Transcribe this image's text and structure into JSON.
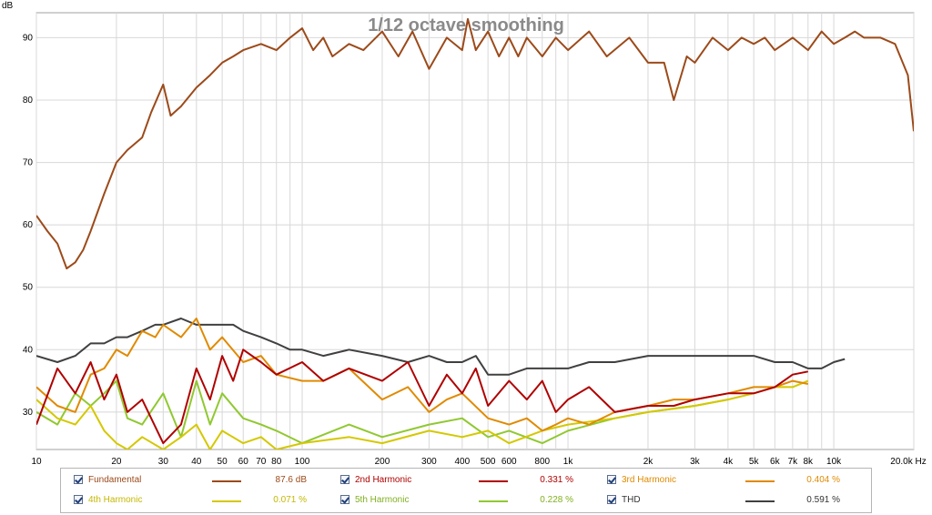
{
  "chart_data": {
    "type": "line",
    "title": "1/12 octave smoothing",
    "ylabel": "dB",
    "x_scale": "log",
    "xlim": [
      10,
      20000
    ],
    "ylim": [
      24,
      94
    ],
    "grid": true,
    "x_ticks": [
      {
        "v": 10,
        "l": "10"
      },
      {
        "v": 20,
        "l": "20"
      },
      {
        "v": 30,
        "l": "30"
      },
      {
        "v": 40,
        "l": "40"
      },
      {
        "v": 50,
        "l": "50"
      },
      {
        "v": 60,
        "l": "60"
      },
      {
        "v": 70,
        "l": "70"
      },
      {
        "v": 80,
        "l": "80"
      },
      {
        "v": 100,
        "l": "100"
      },
      {
        "v": 200,
        "l": "200"
      },
      {
        "v": 300,
        "l": "300"
      },
      {
        "v": 400,
        "l": "400"
      },
      {
        "v": 500,
        "l": "500"
      },
      {
        "v": 600,
        "l": "600"
      },
      {
        "v": 800,
        "l": "800"
      },
      {
        "v": 1000,
        "l": "1k"
      },
      {
        "v": 2000,
        "l": "2k"
      },
      {
        "v": 3000,
        "l": "3k"
      },
      {
        "v": 4000,
        "l": "4k"
      },
      {
        "v": 5000,
        "l": "5k"
      },
      {
        "v": 6000,
        "l": "6k"
      },
      {
        "v": 7000,
        "l": "7k"
      },
      {
        "v": 8000,
        "l": "8k"
      },
      {
        "v": 10000,
        "l": "10k"
      },
      {
        "v": 20000,
        "l": "20.0k Hz"
      }
    ],
    "y_ticks": [
      30,
      40,
      50,
      60,
      70,
      80,
      90
    ],
    "series": [
      {
        "name": "Fundamental",
        "color": "#9c4a1a",
        "x": [
          10,
          11,
          12,
          13,
          14,
          15,
          16,
          18,
          20,
          22,
          25,
          27,
          30,
          32,
          35,
          40,
          45,
          50,
          55,
          60,
          70,
          80,
          90,
          100,
          110,
          120,
          130,
          150,
          170,
          200,
          230,
          260,
          300,
          350,
          400,
          420,
          450,
          500,
          550,
          600,
          650,
          700,
          800,
          900,
          1000,
          1200,
          1400,
          1700,
          2000,
          2300,
          2500,
          2800,
          3000,
          3500,
          4000,
          4500,
          5000,
          5500,
          6000,
          7000,
          8000,
          9000,
          10000,
          11000,
          12000,
          13000,
          15000,
          17000,
          19000,
          20000
        ],
        "y": [
          61.5,
          59,
          57,
          53,
          54,
          56,
          59,
          65,
          70,
          72,
          74,
          78,
          82.5,
          77.5,
          79,
          82,
          84,
          86,
          87,
          88,
          89,
          88,
          90,
          91.5,
          88,
          90,
          87,
          89,
          88,
          91,
          87,
          91,
          85,
          90,
          88,
          93,
          88,
          91,
          87,
          90,
          87,
          90,
          87,
          90,
          88,
          91,
          87,
          90,
          86,
          86,
          80,
          87,
          86,
          90,
          88,
          90,
          89,
          90,
          88,
          90,
          88,
          91,
          89,
          90,
          91,
          90,
          90,
          89,
          84,
          75
        ]
      },
      {
        "name": "2nd Harmonic",
        "color": "#b00000",
        "x": [
          10,
          12,
          14,
          16,
          18,
          20,
          22,
          25,
          30,
          35,
          40,
          45,
          50,
          55,
          60,
          70,
          80,
          100,
          120,
          150,
          200,
          250,
          300,
          350,
          400,
          450,
          500,
          600,
          700,
          800,
          900,
          1000,
          1200,
          1500,
          2000,
          2500,
          3000,
          4000,
          5000,
          6000,
          7000,
          8000
        ],
        "y": [
          28,
          37,
          33,
          38,
          32,
          36,
          30,
          32,
          25,
          28,
          37,
          32,
          39,
          35,
          40,
          38,
          36,
          38,
          35,
          37,
          35,
          38,
          31,
          36,
          33,
          37,
          31,
          35,
          32,
          35,
          30,
          32,
          34,
          30,
          31,
          31,
          32,
          33,
          33,
          34,
          36,
          36.5
        ]
      },
      {
        "name": "3rd Harmonic",
        "color": "#e08a00",
        "x": [
          10,
          12,
          14,
          16,
          18,
          20,
          22,
          25,
          28,
          30,
          35,
          40,
          45,
          50,
          60,
          70,
          80,
          100,
          120,
          150,
          200,
          250,
          300,
          350,
          400,
          500,
          600,
          700,
          800,
          900,
          1000,
          1200,
          1500,
          2000,
          2500,
          3000,
          4000,
          5000,
          6000,
          7000,
          8000
        ],
        "y": [
          34,
          31,
          30,
          36,
          37,
          40,
          39,
          43,
          42,
          44,
          42,
          45,
          40,
          42,
          38,
          39,
          36,
          35,
          35,
          37,
          32,
          34,
          30,
          32,
          33,
          29,
          28,
          29,
          27,
          28,
          29,
          28,
          30,
          31,
          32,
          32,
          33,
          34,
          34,
          35,
          34.5
        ]
      },
      {
        "name": "4th Harmonic",
        "color": "#d4c800",
        "x": [
          10,
          12,
          14,
          16,
          18,
          20,
          22,
          25,
          30,
          35,
          40,
          45,
          50,
          60,
          70,
          80,
          100,
          150,
          200,
          300,
          400,
          500,
          600,
          800,
          1000,
          1500,
          2000,
          3000,
          4000,
          5000,
          6000,
          7000,
          8000
        ],
        "y": [
          32,
          29,
          28,
          31,
          27,
          25,
          24,
          26,
          24,
          26,
          28,
          24,
          27,
          25,
          26,
          24,
          25,
          26,
          25,
          27,
          26,
          27,
          25,
          27,
          28,
          29,
          30,
          31,
          32,
          33,
          34,
          34,
          35
        ]
      },
      {
        "name": "5th Harmonic",
        "color": "#90c830",
        "x": [
          10,
          12,
          14,
          16,
          18,
          20,
          22,
          25,
          30,
          35,
          40,
          45,
          50,
          60,
          70,
          80,
          100,
          150,
          200,
          300,
          400,
          500,
          600,
          800,
          1000,
          1500,
          2000,
          3000,
          4000
        ],
        "y": [
          30,
          28,
          33,
          31,
          33,
          35,
          29,
          28,
          33,
          26,
          35,
          28,
          33,
          29,
          28,
          27,
          25,
          28,
          26,
          28,
          29,
          26,
          27,
          25,
          27,
          29,
          30,
          31,
          32
        ]
      },
      {
        "name": "THD",
        "color": "#404040",
        "x": [
          10,
          12,
          14,
          16,
          18,
          20,
          22,
          25,
          28,
          30,
          35,
          40,
          45,
          50,
          55,
          60,
          70,
          80,
          90,
          100,
          120,
          150,
          200,
          250,
          300,
          350,
          400,
          450,
          500,
          550,
          600,
          700,
          800,
          900,
          1000,
          1200,
          1500,
          2000,
          2500,
          3000,
          3500,
          4000,
          5000,
          6000,
          7000,
          8000,
          9000,
          10000,
          11000
        ],
        "y": [
          39,
          38,
          39,
          41,
          41,
          42,
          42,
          43,
          44,
          44,
          45,
          44,
          44,
          44,
          44,
          43,
          42,
          41,
          40,
          40,
          39,
          40,
          39,
          38,
          39,
          38,
          38,
          39,
          36,
          36,
          36,
          37,
          37,
          37,
          37,
          38,
          38,
          39,
          39,
          39,
          39,
          39,
          39,
          38,
          38,
          37,
          37,
          38,
          38.5
        ]
      }
    ]
  },
  "legend": [
    {
      "name": "Fundamental",
      "value": "87.6 dB",
      "color": "#9c4a1a",
      "text_color": "#9c4a1a"
    },
    {
      "name": "2nd Harmonic",
      "value": "0.331 %",
      "color": "#b00000",
      "text_color": "#b00000"
    },
    {
      "name": "3rd Harmonic",
      "value": "0.404 %",
      "color": "#e08a00",
      "text_color": "#e08a00"
    },
    {
      "name": "4th Harmonic",
      "value": "0.071 %",
      "color": "#d4c800",
      "text_color": "#c4b800"
    },
    {
      "name": "5th Harmonic",
      "value": "0.228 %",
      "color": "#90c830",
      "text_color": "#80b020"
    },
    {
      "name": "THD",
      "value": "0.591 %",
      "color": "#404040",
      "text_color": "#333333"
    }
  ]
}
